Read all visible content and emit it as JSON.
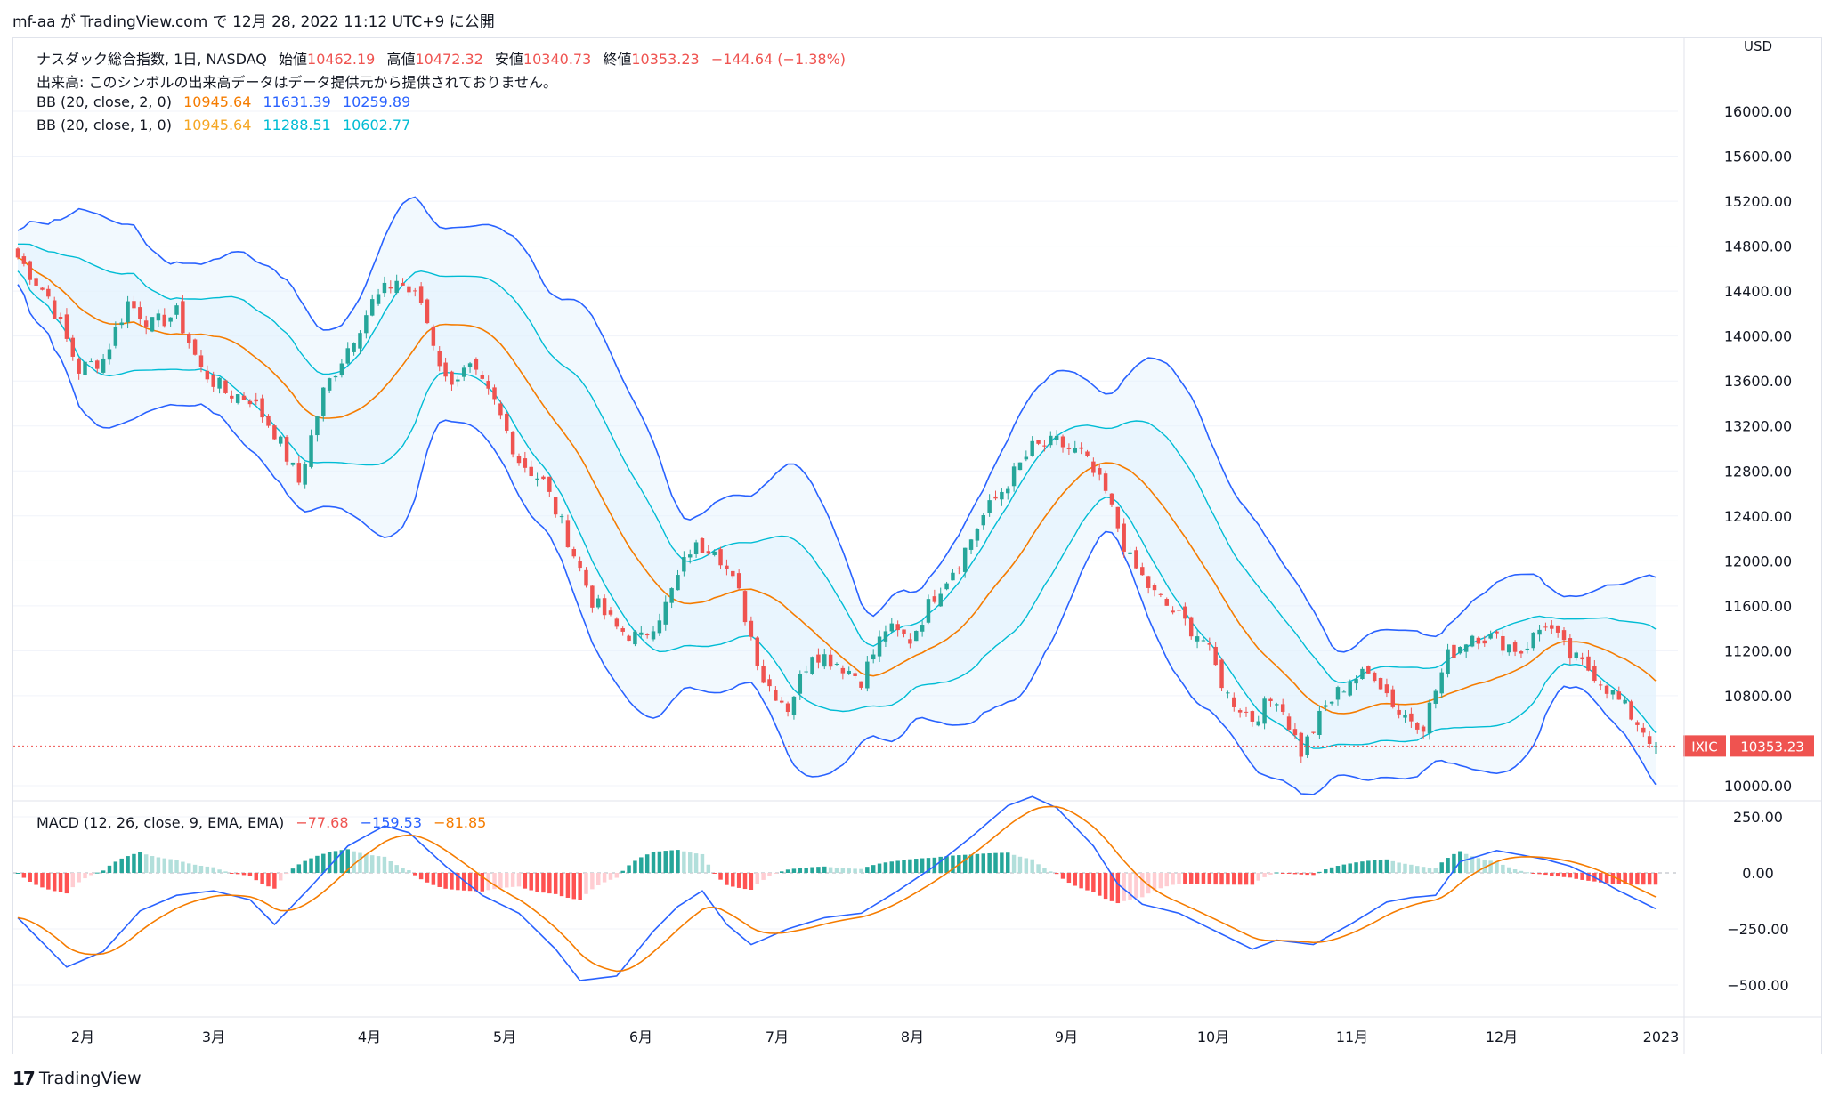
{
  "header": {
    "text": "mf-aa が TradingView.com で 12月 28, 2022 11:12 UTC+9 に公開"
  },
  "footer": {
    "brand": "TradingView",
    "logo": "17"
  },
  "colors": {
    "up": "#26a69a",
    "down": "#ef5350",
    "bb_outer": "#2962ff",
    "bb_inner": "#00bcd4",
    "basis": "#f57c00",
    "macd": "#2962ff",
    "signal": "#f57c00",
    "hist_up_strong": "#26a69a",
    "hist_up_weak": "#b2dfdb",
    "hist_down_strong": "#ff5252",
    "hist_down_weak": "#ffcdd2",
    "fill": "#e3f2fd"
  },
  "legend": {
    "line1": {
      "title": "ナスダック総合指数, 1日, NASDAQ",
      "open_label": "始値",
      "open": "10462.19",
      "high_label": "高値",
      "high": "10472.32",
      "low_label": "安値",
      "low": "10340.73",
      "close_label": "終値",
      "close": "10353.23",
      "change": "−144.64 (−1.38%)"
    },
    "volume_note": "出来高: このシンボルの出来高データはデータ提供元から提供されておりません。",
    "bb1": {
      "label": "BB (20, close, 2, 0)",
      "basis": "10945.64",
      "upper": "11631.39",
      "lower": "10259.89"
    },
    "bb2": {
      "label": "BB (20, close, 1, 0)",
      "basis": "10945.64",
      "upper": "11288.51",
      "lower": "10602.77"
    },
    "macd": {
      "label": "MACD (12, 26, close, 9, EMA, EMA)",
      "hist": "−77.68",
      "macd": "−159.53",
      "signal": "−81.85"
    }
  },
  "chart_data": {
    "type": "candlestick",
    "symbol": "IXIC",
    "last_price": "10353.23",
    "currency": "USD",
    "price_axis": {
      "ticks": [
        "16000.00",
        "15600.00",
        "15200.00",
        "14800.00",
        "14400.00",
        "14000.00",
        "13600.00",
        "13200.00",
        "12800.00",
        "12400.00",
        "12000.00",
        "11600.00",
        "11200.00",
        "10800.00",
        "10000.00"
      ],
      "range": [
        9900,
        16400
      ]
    },
    "macd_axis": {
      "ticks": [
        "250.00",
        "0.00",
        "−250.00",
        "−500.00"
      ],
      "range": [
        -600,
        400
      ]
    },
    "month_labels": [
      "2月",
      "3月",
      "4月",
      "5月",
      "6月",
      "7月",
      "8月",
      "9月",
      "10月",
      "11月",
      "12月",
      "2023"
    ],
    "close_waypoints": [
      [
        0,
        14700
      ],
      [
        5,
        14350
      ],
      [
        10,
        13700
      ],
      [
        14,
        13800
      ],
      [
        18,
        14300
      ],
      [
        22,
        14100
      ],
      [
        26,
        14200
      ],
      [
        30,
        13700
      ],
      [
        34,
        13500
      ],
      [
        38,
        13450
      ],
      [
        42,
        13150
      ],
      [
        46,
        12700
      ],
      [
        50,
        13500
      ],
      [
        54,
        13900
      ],
      [
        58,
        14300
      ],
      [
        62,
        14500
      ],
      [
        66,
        14300
      ],
      [
        70,
        13600
      ],
      [
        74,
        13700
      ],
      [
        78,
        13400
      ],
      [
        82,
        12900
      ],
      [
        86,
        12700
      ],
      [
        90,
        12200
      ],
      [
        94,
        11650
      ],
      [
        98,
        11400
      ],
      [
        102,
        11300
      ],
      [
        106,
        11600
      ],
      [
        110,
        12100
      ],
      [
        114,
        12150
      ],
      [
        118,
        11700
      ],
      [
        122,
        10950
      ],
      [
        126,
        10700
      ],
      [
        130,
        11200
      ],
      [
        134,
        11100
      ],
      [
        138,
        10950
      ],
      [
        142,
        11400
      ],
      [
        146,
        11300
      ],
      [
        150,
        11700
      ],
      [
        154,
        12000
      ],
      [
        158,
        12400
      ],
      [
        162,
        12700
      ],
      [
        166,
        13000
      ],
      [
        170,
        13050
      ],
      [
        174,
        12950
      ],
      [
        178,
        12600
      ],
      [
        182,
        12000
      ],
      [
        186,
        11700
      ],
      [
        190,
        11500
      ],
      [
        194,
        11300
      ],
      [
        198,
        10800
      ],
      [
        202,
        10600
      ],
      [
        206,
        10800
      ],
      [
        210,
        10300
      ],
      [
        214,
        10700
      ],
      [
        218,
        10950
      ],
      [
        222,
        11000
      ],
      [
        226,
        10650
      ],
      [
        230,
        10550
      ],
      [
        234,
        11150
      ],
      [
        238,
        11350
      ],
      [
        242,
        11300
      ],
      [
        246,
        11200
      ],
      [
        250,
        11450
      ],
      [
        254,
        11150
      ],
      [
        258,
        11000
      ],
      [
        262,
        10750
      ],
      [
        266,
        10500
      ],
      [
        268,
        10353
      ]
    ],
    "macd_waypoints": [
      [
        0,
        -200
      ],
      [
        8,
        -420
      ],
      [
        14,
        -350
      ],
      [
        20,
        -170
      ],
      [
        26,
        -100
      ],
      [
        32,
        -80
      ],
      [
        38,
        -120
      ],
      [
        42,
        -230
      ],
      [
        48,
        -60
      ],
      [
        54,
        120
      ],
      [
        60,
        210
      ],
      [
        64,
        180
      ],
      [
        70,
        30
      ],
      [
        76,
        -100
      ],
      [
        82,
        -180
      ],
      [
        88,
        -340
      ],
      [
        92,
        -480
      ],
      [
        98,
        -460
      ],
      [
        104,
        -260
      ],
      [
        108,
        -150
      ],
      [
        112,
        -80
      ],
      [
        116,
        -230
      ],
      [
        120,
        -320
      ],
      [
        126,
        -250
      ],
      [
        132,
        -200
      ],
      [
        138,
        -180
      ],
      [
        144,
        -80
      ],
      [
        150,
        30
      ],
      [
        156,
        160
      ],
      [
        162,
        300
      ],
      [
        166,
        340
      ],
      [
        170,
        290
      ],
      [
        176,
        120
      ],
      [
        180,
        -50
      ],
      [
        184,
        -140
      ],
      [
        190,
        -180
      ],
      [
        196,
        -260
      ],
      [
        202,
        -340
      ],
      [
        206,
        -300
      ],
      [
        212,
        -320
      ],
      [
        218,
        -230
      ],
      [
        224,
        -130
      ],
      [
        228,
        -110
      ],
      [
        232,
        -100
      ],
      [
        236,
        50
      ],
      [
        242,
        100
      ],
      [
        246,
        80
      ],
      [
        250,
        60
      ],
      [
        254,
        30
      ],
      [
        258,
        -20
      ],
      [
        262,
        -80
      ],
      [
        268,
        -160
      ]
    ]
  }
}
